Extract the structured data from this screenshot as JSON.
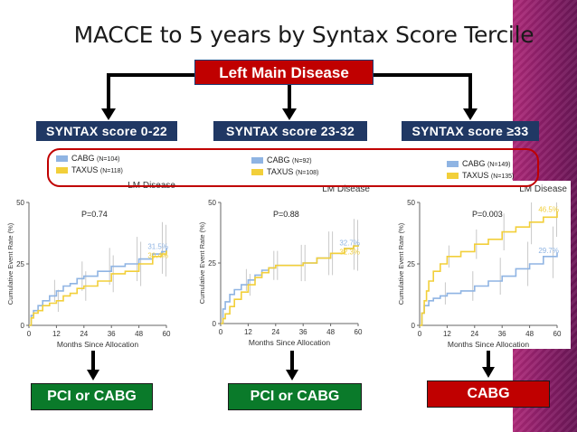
{
  "title": "MACCE to 5 years by Syntax Score Tercile",
  "root_label": "Left Main Disease",
  "colors": {
    "cabg": "#8fb4e3",
    "taxus": "#f2cf3a",
    "navy": "#203864",
    "red": "#c00000",
    "green": "#0a7a2a"
  },
  "groups": [
    {
      "score_label": "SYNTAX score 0-22",
      "legend": [
        {
          "name": "CABG",
          "n": "(N=104)"
        },
        {
          "name": "TAXUS",
          "n": "(N=118)"
        }
      ],
      "result": "PCI or CABG"
    },
    {
      "score_label": "SYNTAX score 23-32",
      "legend": [
        {
          "name": "CABG",
          "n": "(N=92)"
        },
        {
          "name": "TAXUS",
          "n": "(N=108)"
        }
      ],
      "result": "PCI or CABG"
    },
    {
      "score_label": "SYNTAX score ≥33",
      "legend": [
        {
          "name": "CABG",
          "n": "(N=149)"
        },
        {
          "name": "TAXUS",
          "n": "(N=135)"
        }
      ],
      "result": "CABG"
    }
  ],
  "chart_data": [
    {
      "type": "line",
      "title": "LM Disease",
      "p_value": "P=0.74",
      "xlabel": "Months Since Allocation",
      "ylabel": "Cumulative Event Rate (%)",
      "x_ticks": [
        0,
        12,
        24,
        36,
        48,
        60
      ],
      "y_ticks": [
        0,
        25,
        50
      ],
      "xlim": [
        0,
        60
      ],
      "ylim": [
        0,
        50
      ],
      "series": [
        {
          "name": "CABG",
          "end_label": "31.5%",
          "x": [
            0,
            1,
            2,
            4,
            6,
            9,
            12,
            15,
            18,
            21,
            24,
            30,
            36,
            42,
            48,
            54,
            58,
            60
          ],
          "y": [
            0,
            4,
            6,
            8,
            10,
            12,
            14,
            16,
            17,
            19,
            20,
            22,
            24,
            25,
            27,
            29,
            30,
            31.5
          ]
        },
        {
          "name": "TAXUS",
          "end_label": "30.4%",
          "x": [
            0,
            1,
            2,
            4,
            6,
            9,
            12,
            15,
            18,
            21,
            24,
            30,
            36,
            42,
            48,
            54,
            58,
            60
          ],
          "y": [
            0,
            3,
            5,
            6,
            8,
            9,
            10,
            12,
            13,
            15,
            16,
            18,
            21,
            22,
            25,
            28,
            29,
            30.4
          ]
        }
      ]
    },
    {
      "type": "line",
      "title": "LM Disease",
      "p_value": "P=0.88",
      "xlabel": "Months Since Allocation",
      "ylabel": "Cumulative Event Rate (%)",
      "x_ticks": [
        0,
        12,
        24,
        36,
        48,
        60
      ],
      "y_ticks": [
        0,
        25,
        50
      ],
      "xlim": [
        0,
        60
      ],
      "ylim": [
        0,
        50
      ],
      "series": [
        {
          "name": "CABG",
          "end_label": "32.7%",
          "x": [
            0,
            1,
            2,
            4,
            6,
            9,
            12,
            15,
            18,
            21,
            24,
            30,
            36,
            42,
            48,
            54,
            58,
            60
          ],
          "y": [
            0,
            6,
            9,
            12,
            14,
            16,
            18,
            20,
            22,
            23,
            24,
            24,
            25,
            27,
            29,
            31,
            32,
            32.7
          ]
        },
        {
          "name": "TAXUS",
          "end_label": "32.3%",
          "x": [
            0,
            1,
            2,
            4,
            6,
            9,
            12,
            15,
            18,
            21,
            24,
            30,
            36,
            42,
            48,
            54,
            58,
            60
          ],
          "y": [
            0,
            2,
            4,
            7,
            10,
            13,
            16,
            19,
            21,
            23,
            24,
            24,
            25,
            27,
            29,
            31,
            32,
            32.3
          ]
        }
      ]
    },
    {
      "type": "line",
      "title": "LM Disease",
      "p_value": "P=0.003",
      "xlabel": "Months Since Allocation",
      "ylabel": "Cumulative Event Rate (%)",
      "x_ticks": [
        0,
        12,
        24,
        36,
        48,
        60
      ],
      "y_ticks": [
        0,
        25,
        50
      ],
      "xlim": [
        0,
        60
      ],
      "ylim": [
        0,
        50
      ],
      "series": [
        {
          "name": "CABG",
          "end_label": "29.7%",
          "x": [
            0,
            1,
            2,
            4,
            6,
            9,
            12,
            18,
            24,
            30,
            36,
            42,
            48,
            54,
            60
          ],
          "y": [
            0,
            5,
            8,
            10,
            11,
            12,
            13,
            14,
            16,
            18,
            20,
            23,
            25,
            28,
            29.7
          ]
        },
        {
          "name": "TAXUS",
          "end_label": "46.5%",
          "x": [
            0,
            1,
            2,
            3,
            4,
            6,
            9,
            12,
            18,
            24,
            30,
            36,
            42,
            48,
            54,
            60
          ],
          "y": [
            0,
            5,
            10,
            14,
            18,
            22,
            25,
            28,
            30,
            33,
            35,
            38,
            40,
            42,
            44,
            46.5
          ]
        }
      ]
    }
  ]
}
